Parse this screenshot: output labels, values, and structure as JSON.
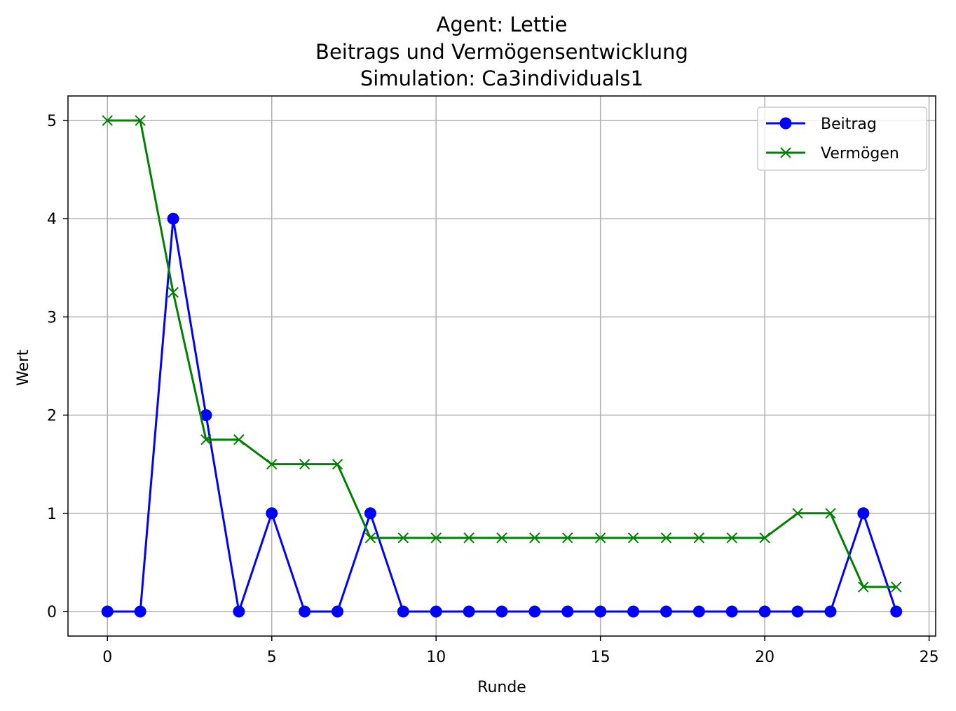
{
  "chart_data": {
    "type": "line",
    "title_lines": [
      "Agent: Lettie",
      "Beitrags und Vermögensentwicklung",
      "Simulation: Ca3individuals1"
    ],
    "xlabel": "Runde",
    "ylabel": "Wert",
    "xlim": [
      -1.2,
      25.2
    ],
    "ylim": [
      -0.25,
      5.25
    ],
    "xticks": [
      0,
      5,
      10,
      15,
      20,
      25
    ],
    "yticks": [
      0,
      1,
      2,
      3,
      4,
      5
    ],
    "grid": true,
    "legend_position": "top-right",
    "x": [
      0,
      1,
      2,
      3,
      4,
      5,
      6,
      7,
      8,
      9,
      10,
      11,
      12,
      13,
      14,
      15,
      16,
      17,
      18,
      19,
      20,
      21,
      22,
      23,
      24
    ],
    "series": [
      {
        "name": "Beitrag",
        "color": "#0000ff",
        "marker": "circle",
        "values": [
          0,
          0,
          4,
          2,
          0,
          1,
          0,
          0,
          1,
          0,
          0,
          0,
          0,
          0,
          0,
          0,
          0,
          0,
          0,
          0,
          0,
          0,
          0,
          1,
          0
        ]
      },
      {
        "name": "Vermögen",
        "color": "#008000",
        "marker": "x",
        "values": [
          5,
          5,
          3.25,
          1.75,
          1.75,
          1.5,
          1.5,
          1.5,
          0.75,
          0.75,
          0.75,
          0.75,
          0.75,
          0.75,
          0.75,
          0.75,
          0.75,
          0.75,
          0.75,
          0.75,
          0.75,
          1,
          1,
          0.25,
          0.25
        ]
      }
    ]
  }
}
